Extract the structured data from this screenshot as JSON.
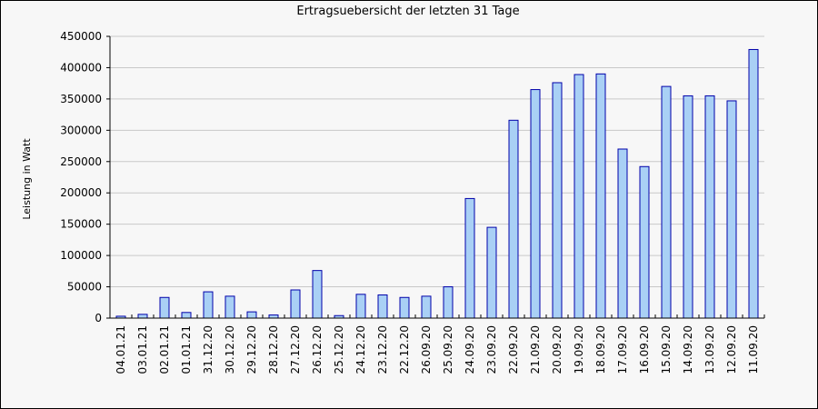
{
  "chart_data": {
    "type": "bar",
    "title": "Ertragsuebersicht der letzten 31 Tage",
    "xlabel": "",
    "ylabel": "Leistung in Watt",
    "ylim": [
      0,
      450000
    ],
    "yticks": [
      0,
      50000,
      100000,
      150000,
      200000,
      250000,
      300000,
      350000,
      400000,
      450000
    ],
    "grid": true,
    "bar_color": "#a9d0f5",
    "bar_edge_color": "#0000aa",
    "categories": [
      "04.01.21",
      "03.01.21",
      "02.01.21",
      "01.01.21",
      "31.12.20",
      "30.12.20",
      "29.12.20",
      "28.12.20",
      "27.12.20",
      "26.12.20",
      "25.12.20",
      "24.12.20",
      "23.12.20",
      "22.12.20",
      "26.09.20",
      "25.09.20",
      "24.09.20",
      "23.09.20",
      "22.09.20",
      "21.09.20",
      "20.09.20",
      "19.09.20",
      "18.09.20",
      "17.09.20",
      "16.09.20",
      "15.09.20",
      "14.09.20",
      "13.09.20",
      "12.09.20",
      "11.09.20"
    ],
    "values": [
      3000,
      6000,
      33000,
      9000,
      42000,
      35000,
      10000,
      5000,
      45000,
      76000,
      4000,
      38000,
      37000,
      33000,
      35000,
      50000,
      191000,
      145000,
      316000,
      365000,
      376000,
      389000,
      390000,
      270000,
      242000,
      370000,
      355000,
      355000,
      347000,
      429000
    ]
  }
}
